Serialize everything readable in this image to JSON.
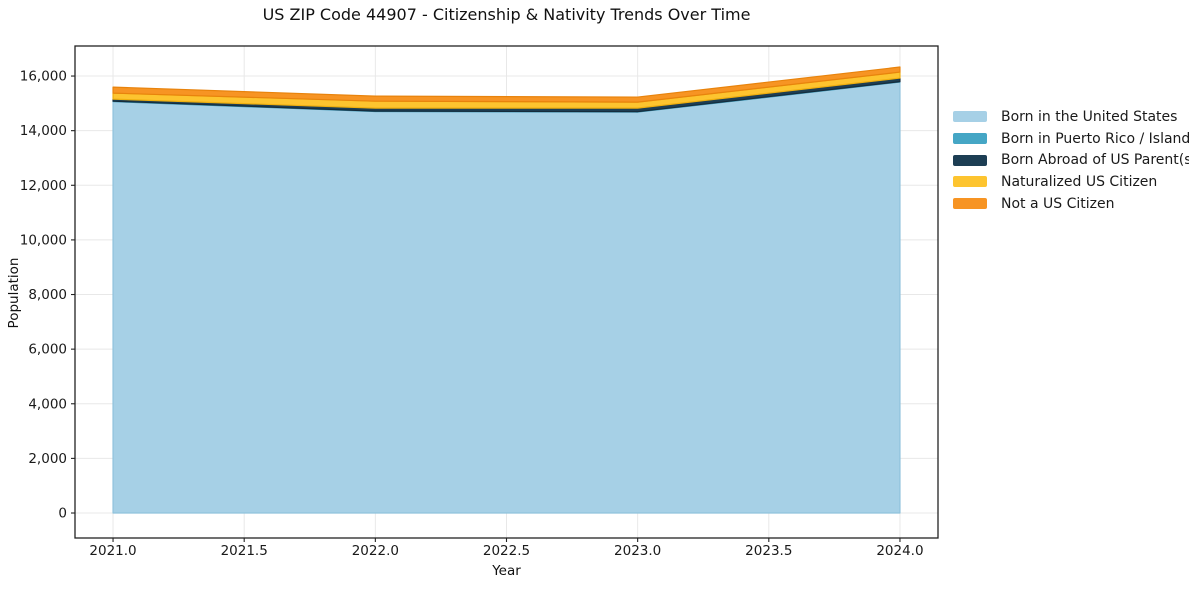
{
  "chart_data": {
    "type": "area",
    "stacked": true,
    "title": "US ZIP Code 44907 - Citizenship & Nativity Trends Over Time",
    "xlabel": "Year",
    "ylabel": "Population",
    "x": [
      2021,
      2022,
      2023,
      2024
    ],
    "series": [
      {
        "name": "Born in the United States",
        "color": "#A6D0E6",
        "edge": "#8FC2DC",
        "values": [
          15065,
          14700,
          14680,
          15780
        ]
      },
      {
        "name": "Born in Puerto Rico / Islands",
        "color": "#45A6C5",
        "edge": "#3592B1",
        "values": [
          15,
          15,
          15,
          15
        ]
      },
      {
        "name": "Born Abroad of US Parent(s)",
        "color": "#1D3E54",
        "edge": "#152C3C",
        "values": [
          75,
          110,
          130,
          130
        ]
      },
      {
        "name": "Naturalized US Citizen",
        "color": "#FDC42F",
        "edge": "#EFAF0F",
        "values": [
          220,
          255,
          220,
          220
        ]
      },
      {
        "name": "Not a US Citizen",
        "color": "#F79423",
        "edge": "#E8830C",
        "values": [
          220,
          185,
          185,
          185
        ]
      }
    ],
    "xlim": [
      2020.855,
      2024.145
    ],
    "ylim": [
      -915,
      17100
    ],
    "x_ticks": [
      2021.0,
      2021.5,
      2022.0,
      2022.5,
      2023.0,
      2023.5,
      2024.0
    ],
    "x_tick_labels": [
      "2021.0",
      "2021.5",
      "2022.0",
      "2022.5",
      "2023.0",
      "2023.5",
      "2024.0"
    ],
    "y_ticks": [
      0,
      2000,
      4000,
      6000,
      8000,
      10000,
      12000,
      14000,
      16000
    ],
    "y_tick_labels": [
      "0",
      "2,000",
      "4,000",
      "6,000",
      "8,000",
      "10,000",
      "12,000",
      "14,000",
      "16,000"
    ],
    "grid": true,
    "grid_color": "#e8e8e8",
    "spine_color": "#222222",
    "tick_text_color": "#1a1a1a",
    "legend_position": "center right outside"
  }
}
